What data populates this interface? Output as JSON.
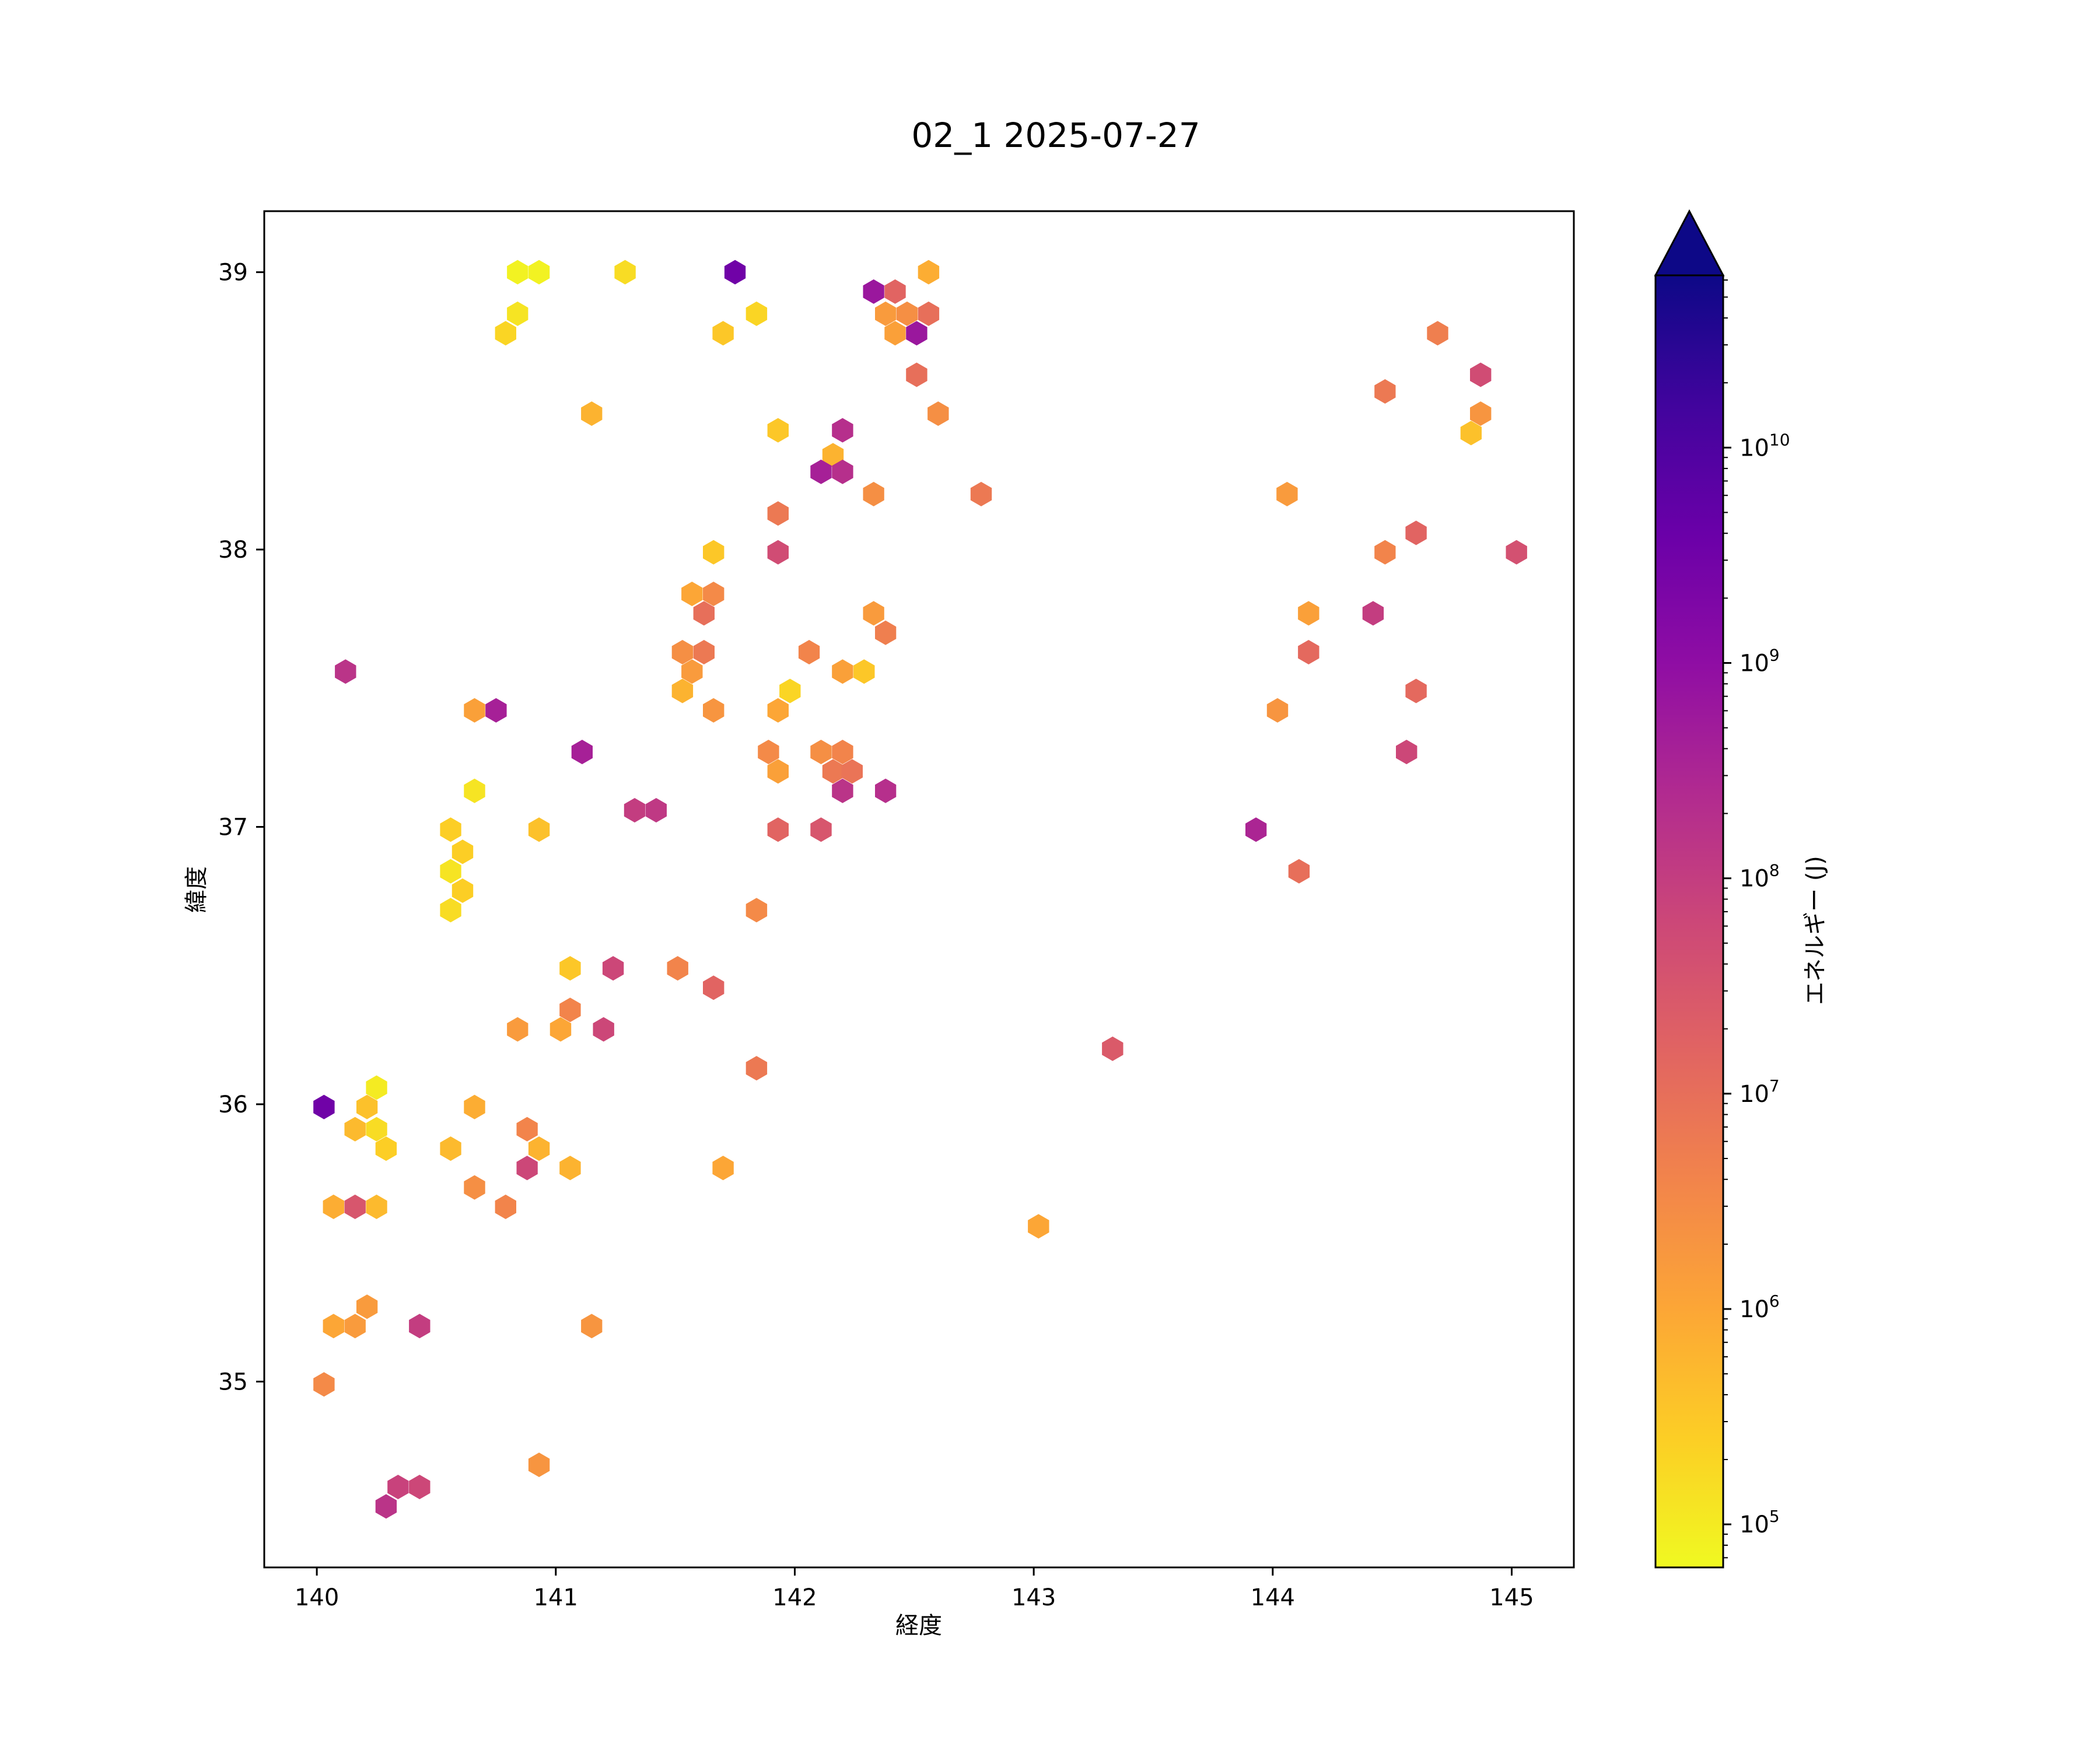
{
  "chart_data": {
    "type": "hexbin",
    "title": "02_1 2025-07-27",
    "xlabel": "経度",
    "ylabel": "緯度",
    "xlim": [
      139.78,
      145.26
    ],
    "ylim": [
      34.33,
      39.22
    ],
    "xticks": [
      140,
      141,
      142,
      143,
      144,
      145
    ],
    "yticks": [
      35,
      36,
      37,
      38,
      39
    ],
    "grid": false,
    "colorbar": {
      "label": "エネルギー (J)",
      "scale": "log",
      "colormap": "plasma_r",
      "range_log10": [
        4.8,
        10.8
      ],
      "extend": "max",
      "extend_color": "#0d0887",
      "ticks": [
        {
          "base": "10",
          "exp": "5",
          "log10": 5
        },
        {
          "base": "10",
          "exp": "6",
          "log10": 6
        },
        {
          "base": "10",
          "exp": "7",
          "log10": 7
        },
        {
          "base": "10",
          "exp": "8",
          "log10": 8
        },
        {
          "base": "10",
          "exp": "9",
          "log10": 9
        },
        {
          "base": "10",
          "exp": "10",
          "log10": 10
        }
      ]
    },
    "points_note_fields": [
      "lon",
      "lat",
      "log10_energy"
    ],
    "points": [
      [
        140.84,
        39.0,
        4.9
      ],
      [
        140.93,
        39.0,
        4.9
      ],
      [
        141.29,
        39.0,
        5.2
      ],
      [
        141.75,
        39.0,
        9.5
      ],
      [
        142.56,
        39.0,
        5.9
      ],
      [
        140.84,
        38.85,
        5.1
      ],
      [
        140.79,
        38.78,
        5.3
      ],
      [
        141.84,
        38.85,
        5.3
      ],
      [
        141.7,
        38.78,
        5.5
      ],
      [
        142.33,
        38.93,
        8.8
      ],
      [
        142.42,
        38.93,
        7.2
      ],
      [
        142.38,
        38.85,
        6.2
      ],
      [
        142.47,
        38.85,
        6.4
      ],
      [
        142.56,
        38.85,
        7.0
      ],
      [
        142.42,
        38.78,
        6.1
      ],
      [
        142.51,
        38.78,
        8.8
      ],
      [
        142.51,
        38.63,
        7.0
      ],
      [
        142.6,
        38.49,
        6.4
      ],
      [
        141.15,
        38.49,
        5.8
      ],
      [
        141.93,
        38.43,
        5.5
      ],
      [
        142.2,
        38.43,
        8.3
      ],
      [
        142.16,
        38.34,
        5.8
      ],
      [
        142.11,
        38.28,
        8.6
      ],
      [
        142.2,
        38.28,
        8.3
      ],
      [
        142.33,
        38.2,
        6.4
      ],
      [
        142.78,
        38.2,
        6.8
      ],
      [
        141.93,
        38.13,
        6.8
      ],
      [
        141.93,
        37.99,
        7.7
      ],
      [
        141.66,
        37.99,
        5.5
      ],
      [
        141.57,
        37.84,
        6.0
      ],
      [
        141.66,
        37.84,
        6.5
      ],
      [
        141.62,
        37.77,
        7.0
      ],
      [
        142.33,
        37.77,
        6.2
      ],
      [
        142.38,
        37.7,
        6.7
      ],
      [
        141.53,
        37.63,
        6.4
      ],
      [
        141.62,
        37.63,
        6.8
      ],
      [
        141.57,
        37.56,
        6.2
      ],
      [
        142.06,
        37.63,
        6.6
      ],
      [
        142.2,
        37.56,
        6.1
      ],
      [
        142.29,
        37.56,
        5.5
      ],
      [
        141.53,
        37.49,
        5.8
      ],
      [
        141.98,
        37.49,
        5.3
      ],
      [
        141.66,
        37.42,
        6.3
      ],
      [
        141.93,
        37.42,
        6.0
      ],
      [
        140.66,
        37.42,
        6.1
      ],
      [
        140.75,
        37.42,
        8.6
      ],
      [
        140.12,
        37.56,
        8.2
      ],
      [
        141.11,
        37.27,
        8.6
      ],
      [
        141.89,
        37.27,
        6.5
      ],
      [
        141.93,
        37.2,
        6.1
      ],
      [
        142.11,
        37.27,
        6.4
      ],
      [
        142.2,
        37.27,
        6.6
      ],
      [
        142.16,
        37.2,
        6.8
      ],
      [
        142.24,
        37.2,
        6.9
      ],
      [
        142.2,
        37.13,
        8.2
      ],
      [
        142.38,
        37.13,
        8.3
      ],
      [
        141.33,
        37.06,
        8.0
      ],
      [
        141.42,
        37.06,
        8.1
      ],
      [
        141.93,
        36.99,
        7.2
      ],
      [
        142.11,
        36.99,
        7.5
      ],
      [
        140.66,
        37.13,
        5.1
      ],
      [
        140.56,
        36.99,
        5.4
      ],
      [
        140.61,
        36.91,
        5.4
      ],
      [
        140.56,
        36.84,
        5.1
      ],
      [
        140.61,
        36.77,
        5.4
      ],
      [
        140.56,
        36.7,
        5.2
      ],
      [
        140.93,
        36.99,
        5.6
      ],
      [
        141.84,
        36.7,
        6.5
      ],
      [
        141.06,
        36.49,
        5.5
      ],
      [
        141.24,
        36.49,
        7.8
      ],
      [
        141.51,
        36.49,
        6.6
      ],
      [
        141.66,
        36.42,
        7.2
      ],
      [
        141.06,
        36.34,
        6.6
      ],
      [
        140.84,
        36.27,
        6.2
      ],
      [
        141.02,
        36.27,
        6.0
      ],
      [
        141.2,
        36.27,
        7.8
      ],
      [
        141.84,
        36.13,
        6.8
      ],
      [
        140.25,
        36.06,
        5.0
      ],
      [
        140.03,
        35.99,
        9.5
      ],
      [
        140.21,
        35.99,
        5.6
      ],
      [
        140.16,
        35.91,
        5.7
      ],
      [
        140.25,
        35.91,
        5.2
      ],
      [
        140.29,
        35.84,
        5.4
      ],
      [
        140.66,
        35.99,
        5.9
      ],
      [
        140.88,
        35.91,
        6.6
      ],
      [
        140.93,
        35.84,
        5.8
      ],
      [
        140.56,
        35.84,
        5.7
      ],
      [
        140.88,
        35.77,
        7.8
      ],
      [
        141.06,
        35.77,
        5.8
      ],
      [
        141.7,
        35.77,
        6.0
      ],
      [
        140.66,
        35.7,
        6.4
      ],
      [
        140.79,
        35.63,
        6.6
      ],
      [
        140.07,
        35.63,
        5.9
      ],
      [
        140.16,
        35.63,
        7.5
      ],
      [
        140.25,
        35.63,
        5.7
      ],
      [
        143.02,
        35.56,
        6.0
      ],
      [
        140.21,
        35.27,
        6.2
      ],
      [
        140.07,
        35.2,
        6.0
      ],
      [
        140.16,
        35.2,
        6.2
      ],
      [
        140.43,
        35.2,
        8.0
      ],
      [
        141.15,
        35.2,
        6.3
      ],
      [
        140.03,
        34.99,
        6.5
      ],
      [
        140.93,
        34.7,
        6.3
      ],
      [
        140.34,
        34.62,
        7.9
      ],
      [
        140.43,
        34.62,
        7.8
      ],
      [
        140.29,
        34.55,
        8.2
      ],
      [
        143.33,
        36.2,
        7.4
      ],
      [
        144.69,
        38.78,
        6.7
      ],
      [
        144.47,
        38.57,
        6.8
      ],
      [
        144.87,
        38.63,
        7.7
      ],
      [
        144.87,
        38.49,
        6.3
      ],
      [
        144.83,
        38.42,
        5.6
      ],
      [
        144.06,
        38.2,
        6.2
      ],
      [
        144.6,
        38.06,
        7.2
      ],
      [
        144.47,
        37.99,
        6.6
      ],
      [
        145.02,
        37.99,
        7.6
      ],
      [
        144.15,
        37.77,
        6.1
      ],
      [
        144.42,
        37.77,
        8.0
      ],
      [
        144.15,
        37.63,
        7.1
      ],
      [
        144.6,
        37.49,
        7.1
      ],
      [
        144.02,
        37.42,
        6.3
      ],
      [
        144.56,
        37.27,
        7.8
      ],
      [
        143.93,
        36.99,
        8.5
      ],
      [
        144.11,
        36.84,
        7.0
      ]
    ]
  }
}
